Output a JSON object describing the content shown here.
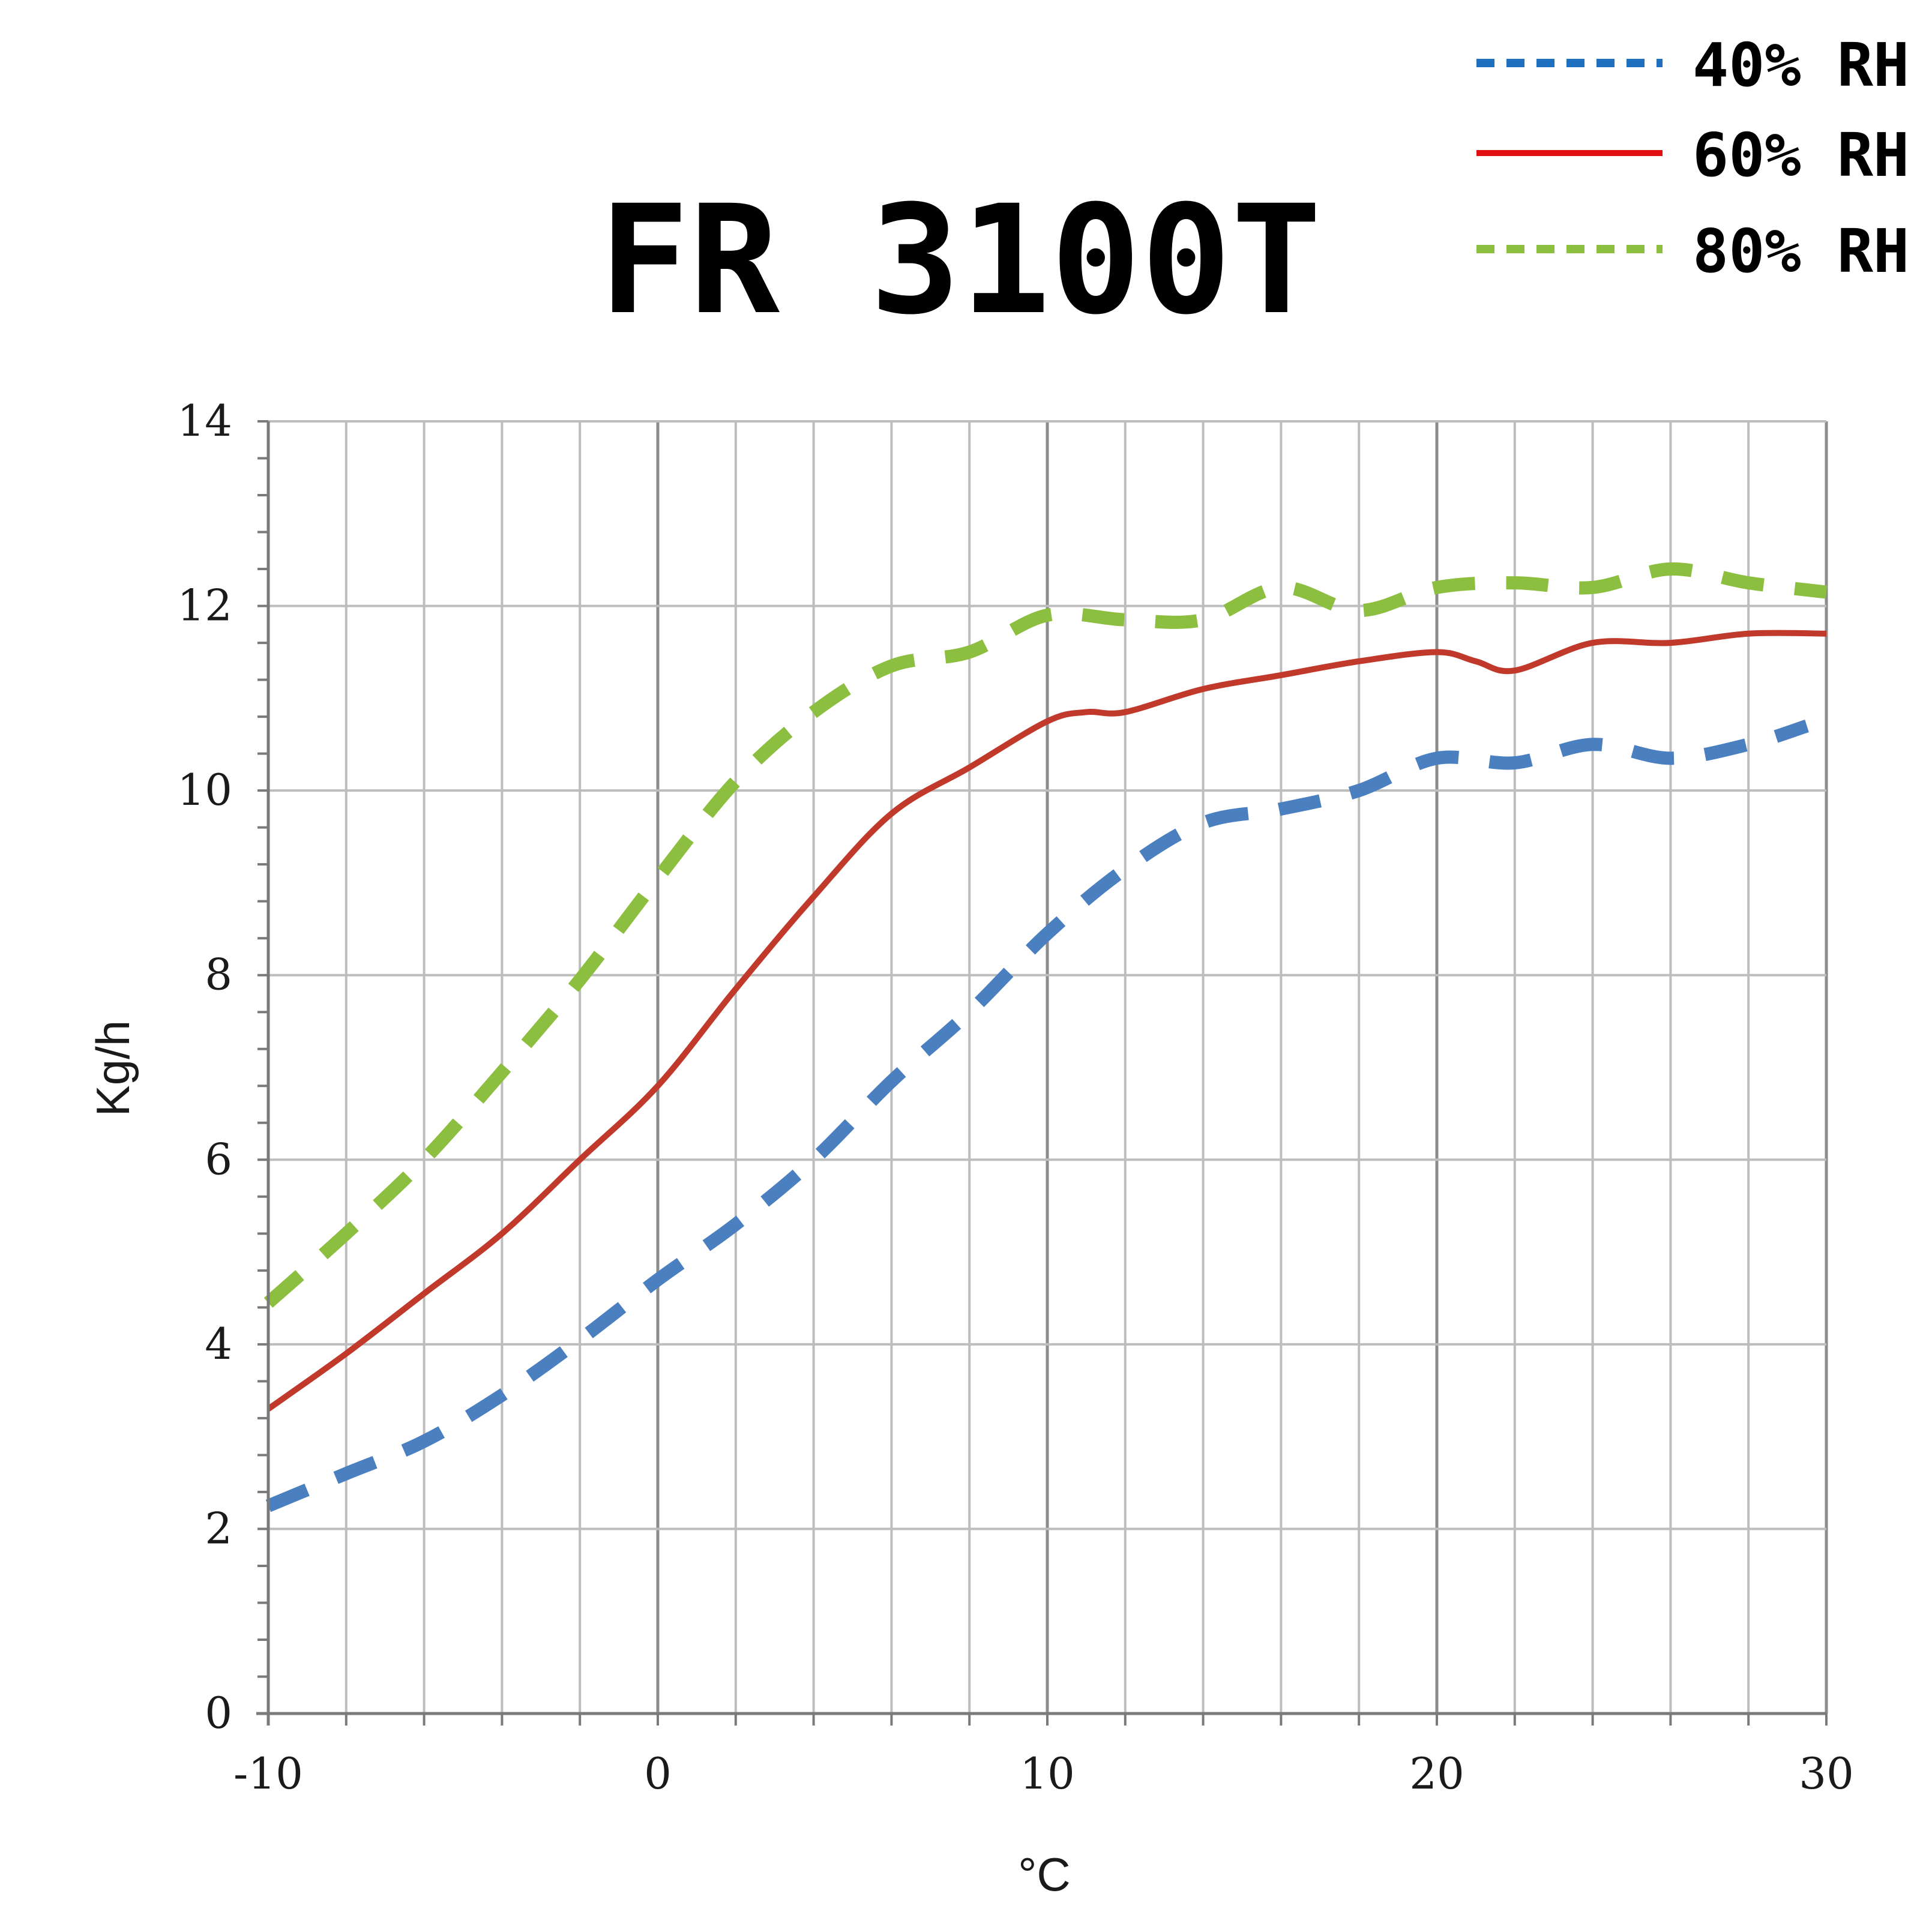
{
  "chart_data": {
    "type": "line",
    "title": "FR 3100T",
    "xlabel": "°C",
    "ylabel": "Kg/h",
    "xlim": [
      -10,
      30
    ],
    "ylim": [
      0,
      14
    ],
    "xticks": [
      -10,
      0,
      10,
      20,
      30
    ],
    "yticks": [
      0,
      2,
      4,
      6,
      8,
      10,
      12,
      14
    ],
    "x_minor_step": 2,
    "y_minor_step": 0.4,
    "grid": true,
    "legend_position": "top-right",
    "series": [
      {
        "name": "40% RH",
        "color": "#4a7fc0",
        "legend_color": "#1f6fbf",
        "style": "dashed",
        "x": [
          -10,
          -8,
          -6,
          -4,
          -2,
          0,
          2,
          4,
          6,
          8,
          10,
          12,
          14,
          16,
          18,
          20,
          22,
          24,
          26,
          28,
          29.5
        ],
        "y": [
          2.25,
          2.6,
          2.95,
          3.45,
          4.05,
          4.7,
          5.3,
          6.0,
          6.85,
          7.6,
          8.45,
          9.15,
          9.65,
          9.8,
          10.0,
          10.35,
          10.3,
          10.5,
          10.35,
          10.5,
          10.7
        ]
      },
      {
        "name": "60% RH",
        "color": "#c0392b",
        "legend_color": "#e01010",
        "style": "solid",
        "x": [
          -10,
          -8,
          -6,
          -4,
          -2,
          0,
          2,
          4,
          6,
          8,
          10,
          11,
          12,
          14,
          16,
          18,
          20,
          21,
          22,
          24,
          26,
          28,
          30
        ],
        "y": [
          3.3,
          3.9,
          4.55,
          5.2,
          6.0,
          6.8,
          7.85,
          8.85,
          9.75,
          10.25,
          10.75,
          10.85,
          10.85,
          11.1,
          11.25,
          11.4,
          11.5,
          11.4,
          11.3,
          11.6,
          11.6,
          11.7,
          11.7
        ]
      },
      {
        "name": "80% RH",
        "color": "#8cbf3f",
        "legend_color": "#8cbf3f",
        "style": "dashed",
        "x": [
          -10,
          -8,
          -6,
          -4,
          -2,
          0,
          2,
          4,
          6,
          8,
          10,
          12,
          14,
          16,
          18,
          20,
          22,
          24,
          26,
          28,
          30
        ],
        "y": [
          4.45,
          5.2,
          6.0,
          6.95,
          7.95,
          9.05,
          10.1,
          10.85,
          11.35,
          11.5,
          11.9,
          11.85,
          11.85,
          12.2,
          11.95,
          12.2,
          12.25,
          12.2,
          12.4,
          12.25,
          12.15
        ]
      }
    ]
  }
}
